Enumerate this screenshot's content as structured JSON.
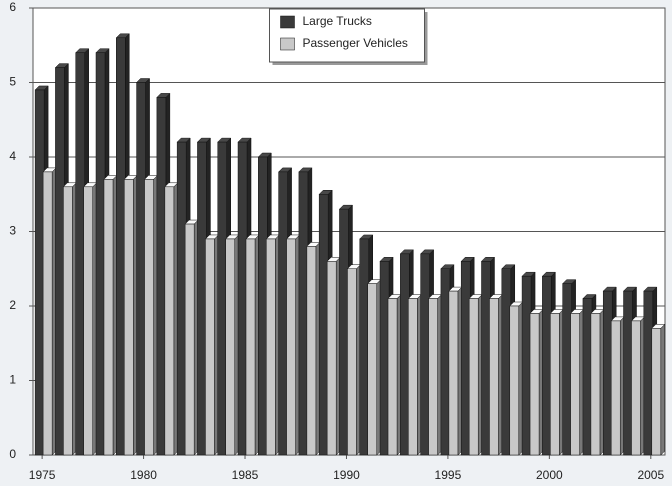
{
  "chart_data": {
    "type": "bar",
    "x": [
      1975,
      1976,
      1977,
      1978,
      1979,
      1980,
      1981,
      1982,
      1983,
      1984,
      1985,
      1986,
      1987,
      1988,
      1989,
      1990,
      1991,
      1992,
      1993,
      1994,
      1995,
      1996,
      1997,
      1998,
      1999,
      2000,
      2001,
      2002,
      2003,
      2004,
      2005
    ],
    "series": [
      {
        "name": "Large Trucks",
        "color": "#3a3a3a",
        "values": [
          4.9,
          5.2,
          5.4,
          5.4,
          5.6,
          5.0,
          4.8,
          4.2,
          4.2,
          4.2,
          4.2,
          4.0,
          3.8,
          3.8,
          3.5,
          3.3,
          2.9,
          2.6,
          2.7,
          2.7,
          2.5,
          2.6,
          2.6,
          2.5,
          2.4,
          2.4,
          2.3,
          2.1,
          2.2,
          2.2,
          2.2
        ]
      },
      {
        "name": "Passenger Vehicles",
        "color": "#c8c8c8",
        "values": [
          3.8,
          3.6,
          3.6,
          3.7,
          3.7,
          3.7,
          3.6,
          3.1,
          2.9,
          2.9,
          2.9,
          2.9,
          2.9,
          2.8,
          2.6,
          2.5,
          2.3,
          2.1,
          2.1,
          2.1,
          2.2,
          2.1,
          2.1,
          2.0,
          1.9,
          1.9,
          1.9,
          1.9,
          1.8,
          1.8,
          1.7
        ]
      }
    ],
    "xlim": [
      1974.55,
      2005.7
    ],
    "xticks": [
      1975,
      1980,
      1985,
      1990,
      1995,
      2000,
      2005
    ],
    "ylim": [
      0,
      6
    ],
    "yticks": [
      0,
      1,
      2,
      3,
      4,
      5,
      6
    ],
    "grid": true,
    "legend": "upper center"
  }
}
